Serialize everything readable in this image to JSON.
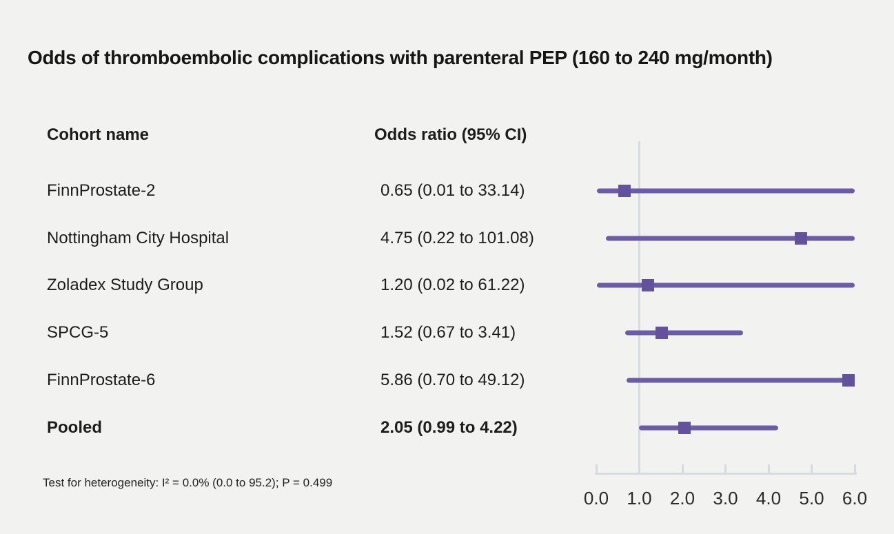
{
  "title": "Odds of thromboembolic complications with parenteral PEP (160 to 240 mg/month)",
  "columns": {
    "cohort": "Cohort name",
    "odds_ratio": "Odds ratio (95% CI)"
  },
  "footnote": "Test for heterogeneity: I² = 0.0% (0.0 to 95.2); P = 0.499",
  "colors": {
    "background": "#f2f2f1",
    "ci_line": "#6c5ba6",
    "marker": "#63519e",
    "axis": "#d6dae1",
    "text": "#1c1c1c"
  },
  "chart_data": {
    "type": "forest",
    "title": "Odds of thromboembolic complications with parenteral PEP (160 to 240 mg/month)",
    "xlabel": "Odds ratio",
    "xlim": [
      0.0,
      6.0
    ],
    "x_ticks": [
      "0.0",
      "1.0",
      "2.0",
      "3.0",
      "4.0",
      "5.0",
      "6.0"
    ],
    "reference_line": 1.0,
    "clip_max": 6.0,
    "rows": [
      {
        "name": "FinnProstate-2",
        "or": 0.65,
        "ci_low": 0.01,
        "ci_high": 33.14,
        "label": "0.65 (0.01 to 33.14)",
        "bold": false
      },
      {
        "name": "Nottingham City Hospital",
        "or": 4.75,
        "ci_low": 0.22,
        "ci_high": 101.08,
        "label": "4.75 (0.22 to 101.08)",
        "bold": false
      },
      {
        "name": "Zoladex Study Group",
        "or": 1.2,
        "ci_low": 0.02,
        "ci_high": 61.22,
        "label": "1.20 (0.02 to 61.22)",
        "bold": false
      },
      {
        "name": "SPCG-5",
        "or": 1.52,
        "ci_low": 0.67,
        "ci_high": 3.41,
        "label": "1.52 (0.67 to 3.41)",
        "bold": false
      },
      {
        "name": "FinnProstate-6",
        "or": 5.86,
        "ci_low": 0.7,
        "ci_high": 49.12,
        "label": "5.86 (0.70 to 49.12)",
        "bold": false
      },
      {
        "name": "Pooled",
        "or": 2.05,
        "ci_low": 0.99,
        "ci_high": 4.22,
        "label": "2.05 (0.99 to 4.22)",
        "bold": true
      }
    ],
    "heterogeneity": "Test for heterogeneity: I² = 0.0% (0.0 to 95.2); P = 0.499"
  }
}
